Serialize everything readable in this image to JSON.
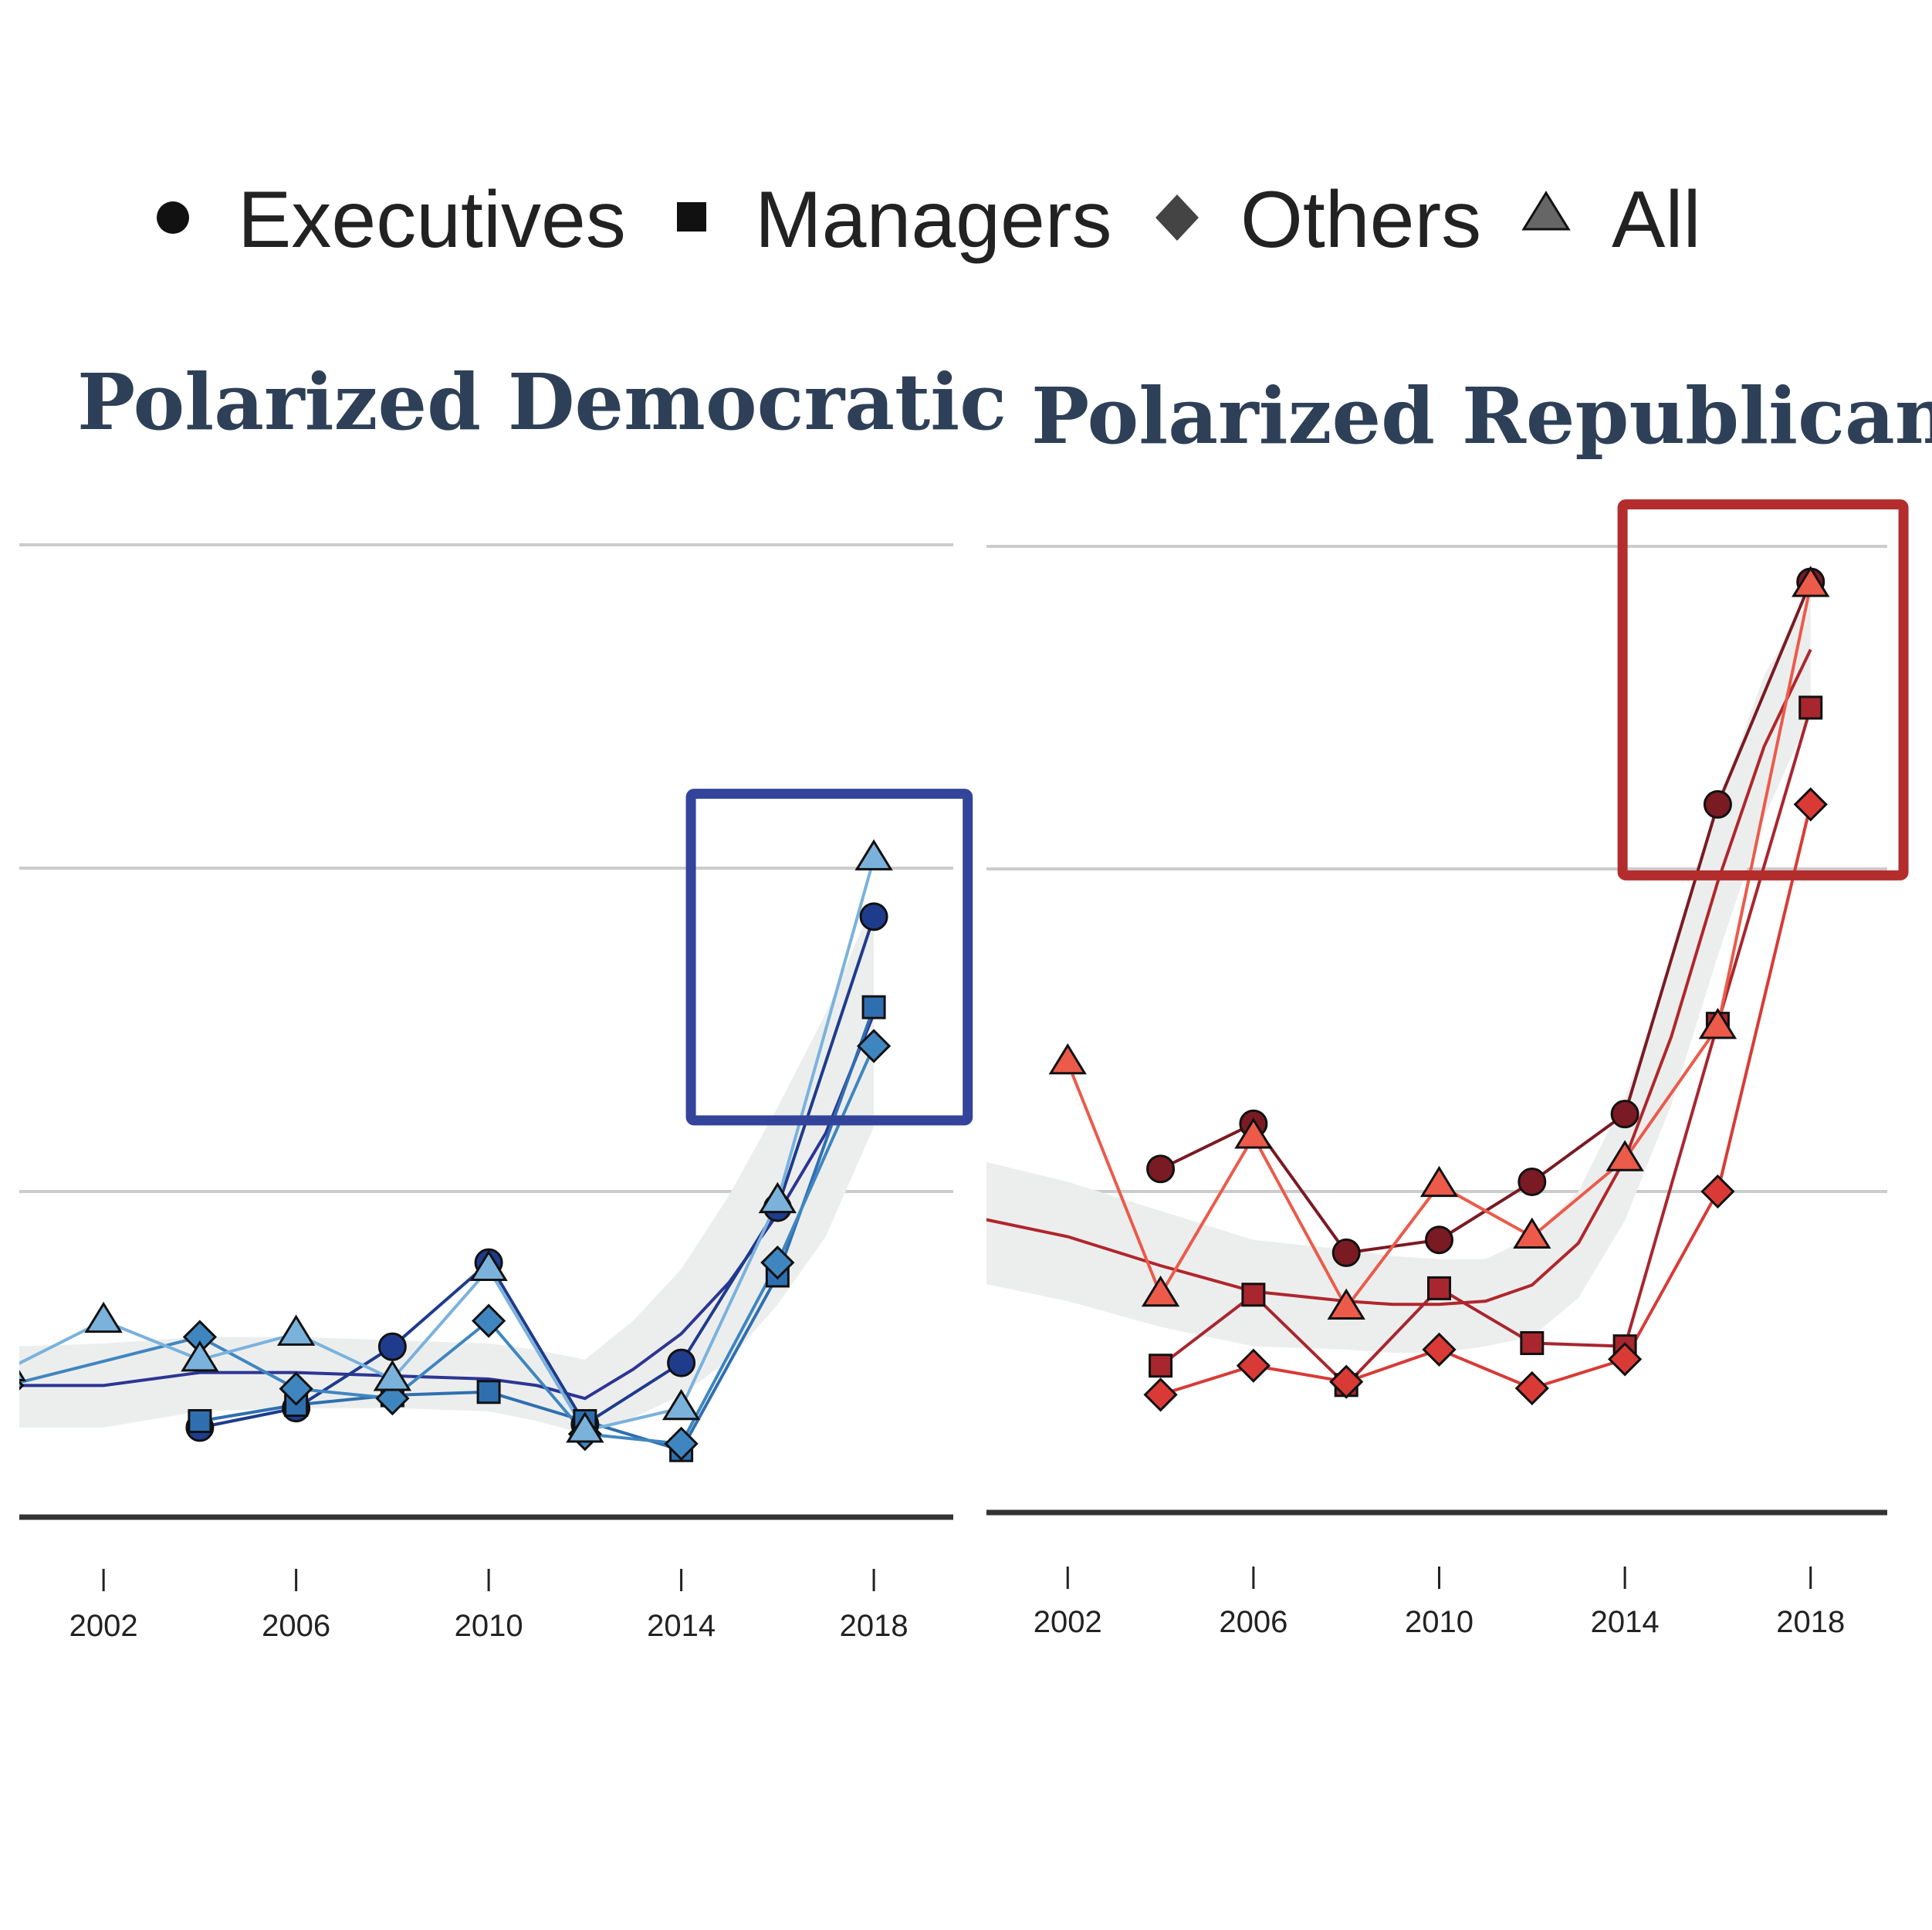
{
  "legend": [
    {
      "label": "Executives",
      "shape": "circle"
    },
    {
      "label": "Managers",
      "shape": "square"
    },
    {
      "label": "Others",
      "shape": "diamond"
    },
    {
      "label": "All",
      "shape": "triangle"
    }
  ],
  "colors": {
    "dem_executives": "#1f3b8c",
    "dem_managers": "#2f6fb0",
    "dem_others": "#3f86c0",
    "dem_all": "#7ab2dc",
    "dem_trend": "#2d3593",
    "dem_highlight": "#33449a",
    "rep_executives": "#7a1a22",
    "rep_managers": "#a8262e",
    "rep_others": "#d93a36",
    "rep_all": "#ec5a4a",
    "rep_trend": "#b0262c",
    "rep_highlight": "#b22d2c",
    "band": "#eceeee",
    "grid": "#cccccc",
    "axis": "#333333"
  },
  "chart_data": [
    {
      "type": "line",
      "title": "Polarized Democratic",
      "xlabel": "",
      "ylabel": "",
      "x_ticks": [
        2002,
        2006,
        2010,
        2014,
        2018
      ],
      "xlim": [
        2000.25,
        2019.65
      ],
      "ylim": [
        0,
        3
      ],
      "grid_y": [
        1,
        2,
        3
      ],
      "legend_position": "top",
      "highlight_box": {
        "x": [
          2014.2,
          2019.95
        ],
        "y": [
          1.22,
          2.23
        ]
      },
      "trend": {
        "x": [
          2000,
          2002,
          2004,
          2006,
          2008,
          2010,
          2011,
          2012,
          2013,
          2014,
          2015,
          2016,
          2017,
          2018
        ],
        "y": [
          0.4,
          0.4,
          0.44,
          0.44,
          0.43,
          0.42,
          0.4,
          0.36,
          0.45,
          0.56,
          0.72,
          0.93,
          1.18,
          1.55
        ],
        "band_upper": [
          0.52,
          0.53,
          0.55,
          0.55,
          0.54,
          0.53,
          0.51,
          0.48,
          0.6,
          0.76,
          0.99,
          1.26,
          1.55,
          1.9
        ],
        "band_lower": [
          0.27,
          0.27,
          0.32,
          0.33,
          0.33,
          0.32,
          0.29,
          0.25,
          0.3,
          0.37,
          0.48,
          0.65,
          0.86,
          1.2
        ]
      },
      "series": [
        {
          "name": "Executives",
          "shape": "circle",
          "x": [
            2004,
            2006,
            2008,
            2010,
            2012,
            2014,
            2016,
            2018
          ],
          "y": [
            0.27,
            0.33,
            0.52,
            0.78,
            0.28,
            0.47,
            0.95,
            1.85
          ]
        },
        {
          "name": "Managers",
          "shape": "square",
          "x": [
            2004,
            2006,
            2008,
            2010,
            2012,
            2014,
            2016,
            2018
          ],
          "y": [
            0.29,
            0.34,
            0.37,
            0.38,
            0.29,
            0.2,
            0.74,
            1.57
          ]
        },
        {
          "name": "Others",
          "shape": "diamond",
          "x": [
            2000,
            2004,
            2006,
            2008,
            2010,
            2012,
            2014,
            2016,
            2018
          ],
          "y": [
            0.4,
            0.55,
            0.39,
            0.36,
            0.6,
            0.25,
            0.22,
            0.78,
            1.45
          ]
        },
        {
          "name": "All",
          "shape": "triangle",
          "x": [
            2000,
            2002,
            2004,
            2006,
            2008,
            2010,
            2012,
            2014,
            2016,
            2018
          ],
          "y": [
            0.45,
            0.6,
            0.48,
            0.56,
            0.42,
            0.76,
            0.26,
            0.33,
            0.97,
            2.03
          ]
        }
      ]
    },
    {
      "type": "line",
      "title": "Polarized Republican",
      "xlabel": "",
      "ylabel": "",
      "x_ticks": [
        2002,
        2006,
        2010,
        2014,
        2018
      ],
      "xlim": [
        2000.25,
        2019.65
      ],
      "ylim": [
        0,
        3
      ],
      "grid_y": [
        1,
        2,
        3
      ],
      "legend_position": "top",
      "highlight_box": {
        "x": [
          2013.95,
          2020.0
        ],
        "y": [
          1.98,
          3.13
        ]
      },
      "trend": {
        "x": [
          2000,
          2002,
          2004,
          2006,
          2008,
          2009,
          2010,
          2011,
          2012,
          2013,
          2014,
          2015,
          2016,
          2017,
          2018
        ],
        "y": [
          0.92,
          0.86,
          0.77,
          0.69,
          0.66,
          0.65,
          0.65,
          0.66,
          0.71,
          0.84,
          1.1,
          1.48,
          1.96,
          2.38,
          2.68
        ],
        "band_upper": [
          1.1,
          1.03,
          0.94,
          0.85,
          0.82,
          0.8,
          0.79,
          0.79,
          0.86,
          1.0,
          1.29,
          1.7,
          2.2,
          2.6,
          2.85
        ],
        "band_lower": [
          0.72,
          0.66,
          0.58,
          0.52,
          0.51,
          0.5,
          0.5,
          0.52,
          0.55,
          0.67,
          0.91,
          1.27,
          1.73,
          2.16,
          2.48
        ]
      },
      "series": [
        {
          "name": "Executives",
          "shape": "circle",
          "x": [
            2004,
            2006,
            2008,
            2010,
            2012,
            2014,
            2016,
            2018
          ],
          "y": [
            1.07,
            1.21,
            0.81,
            0.85,
            1.03,
            1.24,
            2.2,
            2.89
          ]
        },
        {
          "name": "Managers",
          "shape": "square",
          "x": [
            2004,
            2006,
            2008,
            2010,
            2012,
            2014,
            2016,
            2018
          ],
          "y": [
            0.46,
            0.68,
            0.4,
            0.7,
            0.53,
            0.52,
            1.52,
            2.5
          ]
        },
        {
          "name": "Others",
          "shape": "diamond",
          "x": [
            2004,
            2006,
            2008,
            2010,
            2012,
            2014,
            2016,
            2018
          ],
          "y": [
            0.37,
            0.46,
            0.41,
            0.51,
            0.39,
            0.48,
            1.0,
            2.2
          ]
        },
        {
          "name": "All",
          "shape": "triangle",
          "x": [
            2002,
            2004,
            2006,
            2008,
            2010,
            2012,
            2014,
            2016,
            2018
          ],
          "y": [
            1.4,
            0.68,
            1.17,
            0.64,
            1.02,
            0.86,
            1.1,
            1.51,
            2.88
          ]
        }
      ]
    }
  ]
}
